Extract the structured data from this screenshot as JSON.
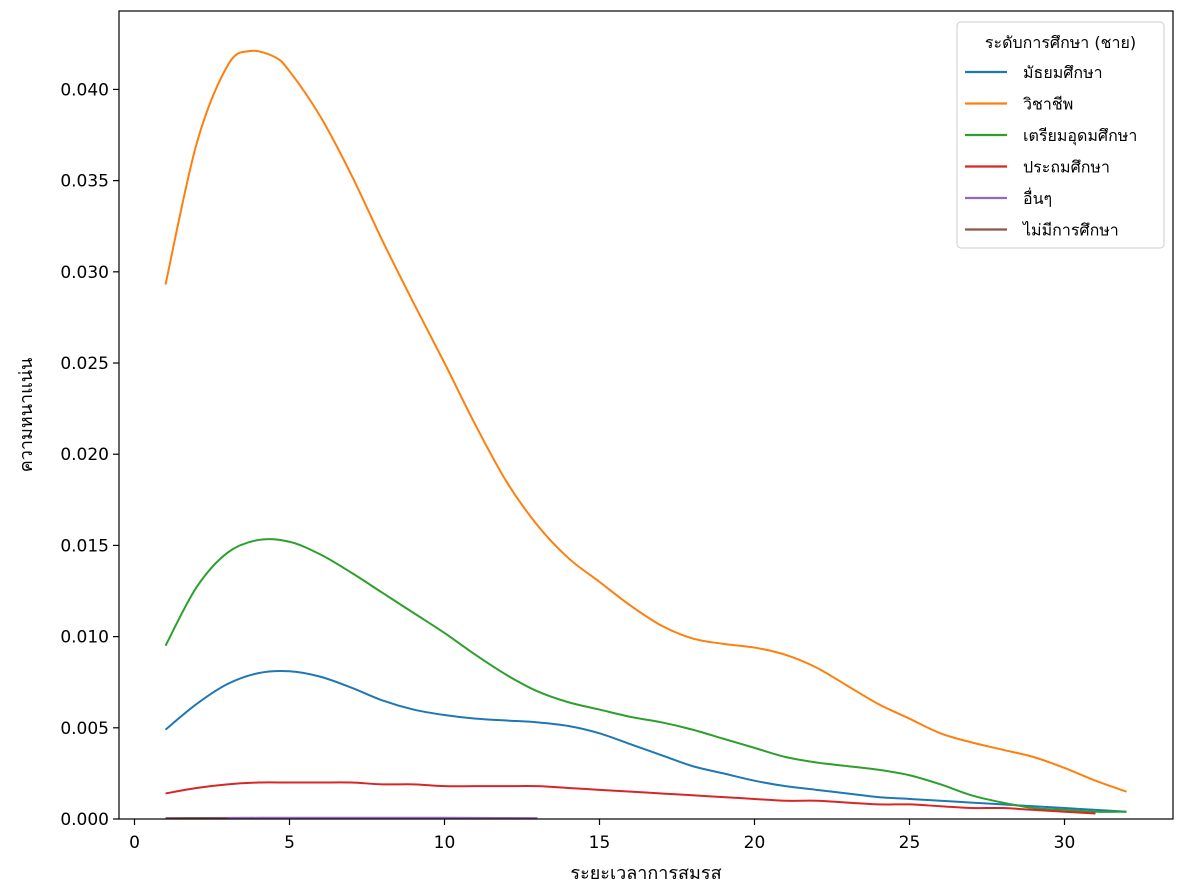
{
  "chart_data": {
    "type": "line",
    "title": "",
    "xlabel": "ระยะเวลาการสมรส",
    "ylabel": "ความหนาแน่น",
    "xlim": [
      -0.5,
      33.5
    ],
    "ylim": [
      0,
      0.0443
    ],
    "xticks": [
      0,
      5,
      10,
      15,
      20,
      25,
      30
    ],
    "yticks": [
      0.0,
      0.005,
      0.01,
      0.015,
      0.02,
      0.025,
      0.03,
      0.035,
      0.04
    ],
    "ytick_labels": [
      "0.000",
      "0.005",
      "0.010",
      "0.015",
      "0.020",
      "0.025",
      "0.030",
      "0.035",
      "0.040"
    ],
    "grid": false,
    "legend": {
      "title": "ระดับการศึกษา (ชาย)",
      "placement": "top-right"
    },
    "series": [
      {
        "name": "มัธยมศึกษา",
        "color": "#1f77b4",
        "x": [
          1,
          2,
          3,
          4,
          5,
          6,
          7,
          8,
          9,
          10,
          11,
          12,
          13,
          14,
          15,
          16,
          17,
          18,
          19,
          20,
          21,
          22,
          23,
          24,
          25,
          26,
          27,
          28,
          29,
          30,
          31,
          32
        ],
        "y": [
          0.0049,
          0.0063,
          0.0074,
          0.008,
          0.0081,
          0.0078,
          0.0072,
          0.0065,
          0.006,
          0.0057,
          0.0055,
          0.0054,
          0.0053,
          0.0051,
          0.0047,
          0.0041,
          0.0035,
          0.0029,
          0.0025,
          0.0021,
          0.0018,
          0.0016,
          0.0014,
          0.0012,
          0.0011,
          0.001,
          0.0009,
          0.0008,
          0.0007,
          0.0006,
          0.0005,
          0.0004
        ]
      },
      {
        "name": "วิชาชีพ",
        "color": "#ff7f0e",
        "x": [
          1,
          2,
          3,
          3.7,
          4.5,
          5,
          6,
          7,
          8,
          9,
          10,
          11,
          12,
          13,
          14,
          15,
          16,
          17,
          18,
          19,
          20,
          21,
          22,
          23,
          24,
          25,
          26,
          27,
          28,
          29,
          30,
          31,
          32
        ],
        "y": [
          0.0293,
          0.037,
          0.0413,
          0.0421,
          0.0418,
          0.041,
          0.0385,
          0.0353,
          0.0317,
          0.0283,
          0.025,
          0.0216,
          0.0185,
          0.0161,
          0.0143,
          0.013,
          0.0117,
          0.0106,
          0.0099,
          0.0096,
          0.0094,
          0.009,
          0.0083,
          0.0073,
          0.0063,
          0.0055,
          0.0047,
          0.0042,
          0.0038,
          0.0034,
          0.0028,
          0.0021,
          0.0015
        ]
      },
      {
        "name": "เตรียมอุดมศึกษา",
        "color": "#2ca02c",
        "x": [
          1,
          2,
          3,
          4,
          5,
          6,
          7,
          8,
          9,
          10,
          11,
          12,
          13,
          14,
          15,
          16,
          17,
          18,
          19,
          20,
          21,
          22,
          23,
          24,
          25,
          26,
          27,
          28,
          29,
          30,
          31,
          32
        ],
        "y": [
          0.0095,
          0.0127,
          0.0146,
          0.0153,
          0.0152,
          0.0145,
          0.0135,
          0.0124,
          0.0113,
          0.0102,
          0.009,
          0.0079,
          0.007,
          0.0064,
          0.006,
          0.0056,
          0.0053,
          0.0049,
          0.0044,
          0.0039,
          0.0034,
          0.0031,
          0.0029,
          0.0027,
          0.0024,
          0.0019,
          0.0013,
          0.0009,
          0.0006,
          0.0005,
          0.0004,
          0.0004
        ]
      },
      {
        "name": "ประถมศึกษา",
        "color": "#d62728",
        "x": [
          1,
          2,
          3,
          4,
          5,
          6,
          7,
          8,
          9,
          10,
          11,
          12,
          13,
          14,
          15,
          16,
          17,
          18,
          19,
          20,
          21,
          22,
          23,
          24,
          25,
          26,
          27,
          28,
          29,
          30,
          31
        ],
        "y": [
          0.0014,
          0.0017,
          0.0019,
          0.002,
          0.002,
          0.002,
          0.002,
          0.0019,
          0.0019,
          0.0018,
          0.0018,
          0.0018,
          0.0018,
          0.0017,
          0.0016,
          0.0015,
          0.0014,
          0.0013,
          0.0012,
          0.0011,
          0.001,
          0.001,
          0.0009,
          0.0008,
          0.0008,
          0.0007,
          0.0006,
          0.0006,
          0.0005,
          0.0004,
          0.0003
        ]
      },
      {
        "name": "อื่นๆ",
        "color": "#9467bd",
        "x": [
          1,
          3,
          5,
          7,
          9,
          11,
          13
        ],
        "y": [
          5e-05,
          6e-05,
          7e-05,
          7e-05,
          7e-05,
          6e-05,
          5e-05
        ]
      },
      {
        "name": "ไม่มีการศึกษา",
        "color": "#8c564b",
        "x": [
          1,
          2,
          3
        ],
        "y": [
          3e-05,
          4e-05,
          3e-05
        ]
      }
    ]
  }
}
